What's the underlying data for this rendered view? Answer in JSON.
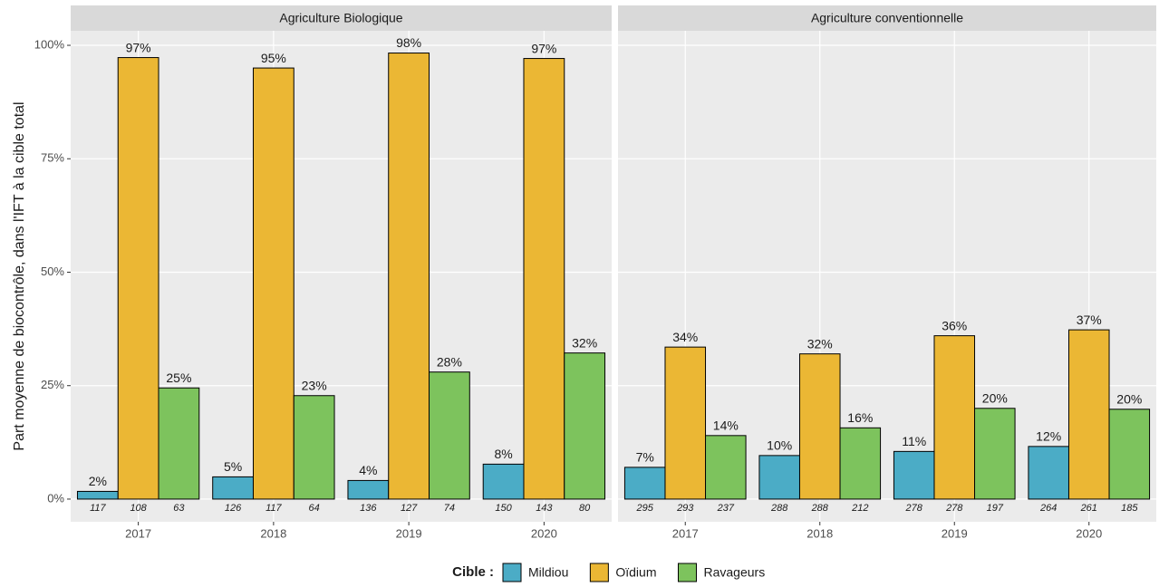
{
  "y_label": "Part moyenne de biocontrôle, dans l'IFT à la cible total",
  "legend_title": "Cible :",
  "chart_data": [
    {
      "type": "bar",
      "title": "Agriculture Biologique",
      "categories": [
        "2017",
        "2018",
        "2019",
        "2020"
      ],
      "ylim": [
        -5,
        103.2
      ],
      "yticks": [
        {
          "value": 0,
          "label": "0%"
        },
        {
          "value": 25,
          "label": "25%"
        },
        {
          "value": 50,
          "label": "50%"
        },
        {
          "value": 75,
          "label": "75%"
        },
        {
          "value": 100,
          "label": "100%"
        }
      ],
      "grid": true,
      "series": [
        {
          "name": "Mildiou",
          "color": "#4bacc6",
          "values": [
            1.7,
            4.9,
            4.1,
            7.7
          ],
          "value_labels": [
            "2%",
            "5%",
            "4%",
            "8%"
          ],
          "n": [
            117,
            126,
            136,
            150
          ]
        },
        {
          "name": "Oïdium",
          "color": "#ebb734",
          "values": [
            97.3,
            95,
            98.3,
            97.1
          ],
          "value_labels": [
            "97%",
            "95%",
            "98%",
            "97%"
          ],
          "n": [
            108,
            117,
            127,
            143
          ]
        },
        {
          "name": "Ravageurs",
          "color": "#7dc35d",
          "values": [
            24.5,
            22.8,
            28,
            32.2
          ],
          "value_labels": [
            "25%",
            "23%",
            "28%",
            "32%"
          ],
          "n": [
            63,
            64,
            74,
            80
          ]
        }
      ]
    },
    {
      "type": "bar",
      "title": "Agriculture conventionnelle",
      "categories": [
        "2017",
        "2018",
        "2019",
        "2020"
      ],
      "ylim": [
        -5,
        103.2
      ],
      "yticks": [
        {
          "value": 0,
          "label": "0%"
        },
        {
          "value": 25,
          "label": "25%"
        },
        {
          "value": 50,
          "label": "50%"
        },
        {
          "value": 75,
          "label": "75%"
        },
        {
          "value": 100,
          "label": "100%"
        }
      ],
      "grid": true,
      "series": [
        {
          "name": "Mildiou",
          "color": "#4bacc6",
          "values": [
            7,
            9.6,
            10.5,
            11.6
          ],
          "value_labels": [
            "7%",
            "10%",
            "11%",
            "12%"
          ],
          "n": [
            295,
            288,
            278,
            264
          ]
        },
        {
          "name": "Oïdium",
          "color": "#ebb734",
          "values": [
            33.5,
            32,
            36,
            37.3
          ],
          "value_labels": [
            "34%",
            "32%",
            "36%",
            "37%"
          ],
          "n": [
            293,
            288,
            278,
            261
          ]
        },
        {
          "name": "Ravageurs",
          "color": "#7dc35d",
          "values": [
            14,
            15.7,
            20,
            19.8
          ],
          "value_labels": [
            "14%",
            "16%",
            "20%",
            "20%"
          ],
          "n": [
            237,
            212,
            197,
            185
          ]
        }
      ]
    }
  ]
}
